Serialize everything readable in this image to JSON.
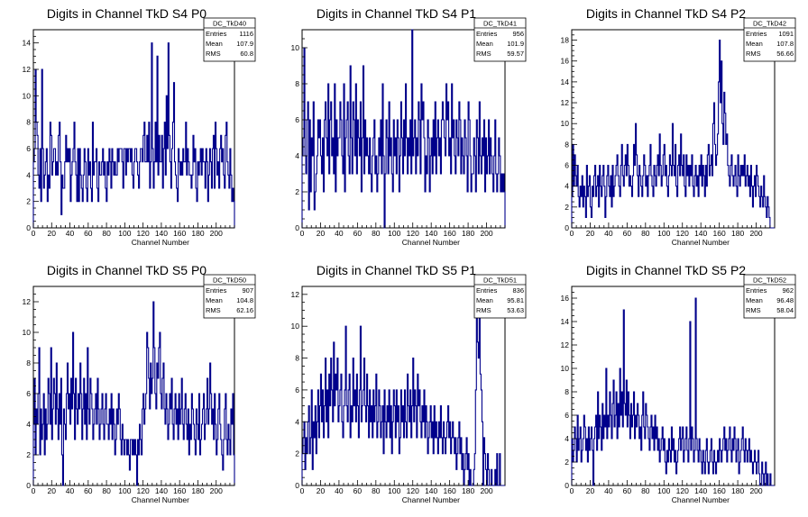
{
  "chart_data": [
    {
      "type": "bar",
      "title": "Digits in Channel TkD S4 P0",
      "xlabel": "Channel Number",
      "ylabel": "",
      "xlim": [
        0,
        220
      ],
      "ylim": [
        0,
        15
      ],
      "xticks": [
        0,
        20,
        40,
        60,
        80,
        100,
        120,
        140,
        160,
        180,
        200
      ],
      "yticks": [
        0,
        2,
        4,
        6,
        8,
        10,
        12,
        14
      ],
      "color": "#00008b",
      "stats": {
        "name": "DC_TkD40",
        "entries": "1116",
        "mean": "107.9",
        "rms": "60.8"
      },
      "values": [
        5,
        6,
        12,
        8,
        7,
        4,
        3,
        6,
        2,
        12,
        6,
        3,
        4,
        5,
        6,
        2,
        4,
        3,
        8,
        7,
        4,
        5,
        6,
        6,
        4,
        5,
        4,
        7,
        8,
        5,
        1,
        4,
        3,
        3,
        5,
        7,
        5,
        6,
        5,
        6,
        2,
        4,
        5,
        6,
        8,
        5,
        4,
        2,
        6,
        2,
        6,
        4,
        3,
        2,
        4,
        6,
        5,
        3,
        2,
        6,
        4,
        5,
        3,
        2,
        8,
        4,
        5,
        5,
        6,
        3,
        2,
        5,
        4,
        4,
        5,
        6,
        4,
        5,
        3,
        2,
        5,
        4,
        6,
        5,
        3,
        6,
        5,
        4,
        5,
        4,
        4,
        6,
        5,
        6,
        6,
        6,
        5,
        3,
        6,
        6,
        4,
        6,
        5,
        6,
        6,
        5,
        6,
        4,
        3,
        5,
        6,
        6,
        5,
        4,
        3,
        5,
        6,
        6,
        5,
        7,
        8,
        5,
        5,
        7,
        5,
        8,
        3,
        5,
        14,
        6,
        3,
        5,
        8,
        5,
        13,
        4,
        7,
        5,
        5,
        7,
        3,
        6,
        8,
        4,
        10,
        6,
        14,
        7,
        5,
        3,
        6,
        8,
        11,
        5,
        4,
        3,
        2,
        6,
        5,
        4,
        5,
        4,
        6,
        5,
        5,
        8,
        4,
        6,
        5,
        4,
        4,
        3,
        4,
        7,
        5,
        6,
        3,
        2,
        5,
        4,
        5,
        6,
        4,
        6,
        5,
        5,
        3,
        6,
        5,
        2,
        4,
        6,
        5,
        3,
        6,
        7,
        3,
        8,
        6,
        4,
        5,
        3,
        6,
        7,
        5,
        6,
        4,
        3,
        7,
        8,
        5,
        4,
        3,
        6,
        4,
        2,
        3,
        2
      ]
    },
    {
      "type": "bar",
      "title": "Digits in Channel TkD S4 P1",
      "xlabel": "Channel Number",
      "ylabel": "",
      "xlim": [
        0,
        220
      ],
      "ylim": [
        0,
        11
      ],
      "xticks": [
        0,
        20,
        40,
        60,
        80,
        100,
        120,
        140,
        160,
        180,
        200
      ],
      "yticks": [
        0,
        2,
        4,
        6,
        8,
        10
      ],
      "color": "#00008b",
      "stats": {
        "name": "DC_TkD41",
        "entries": "956",
        "mean": "101.9",
        "rms": "59.57"
      },
      "values": [
        4,
        5,
        10,
        4,
        3,
        6,
        7,
        1,
        6,
        2,
        5,
        4,
        7,
        1,
        2,
        3,
        4,
        6,
        5,
        6,
        4,
        3,
        5,
        2,
        6,
        7,
        5,
        4,
        8,
        3,
        6,
        7,
        4,
        5,
        3,
        8,
        2,
        6,
        4,
        5,
        5,
        7,
        6,
        4,
        3,
        8,
        2,
        5,
        6,
        7,
        4,
        3,
        9,
        5,
        3,
        7,
        6,
        4,
        8,
        3,
        6,
        5,
        4,
        7,
        2,
        5,
        9,
        3,
        6,
        4,
        5,
        4,
        3,
        5,
        3,
        2,
        4,
        5,
        6,
        3,
        4,
        2,
        3,
        5,
        4,
        6,
        3,
        8,
        4,
        0,
        3,
        6,
        5,
        3,
        7,
        4,
        5,
        3,
        2,
        6,
        4,
        5,
        3,
        6,
        5,
        2,
        4,
        7,
        5,
        3,
        6,
        4,
        8,
        5,
        3,
        5,
        4,
        6,
        3,
        11,
        4,
        5,
        6,
        3,
        5,
        4,
        7,
        6,
        3,
        8,
        6,
        7,
        5,
        2,
        4,
        3,
        6,
        5,
        2,
        4,
        5,
        3,
        6,
        4,
        7,
        3,
        5,
        6,
        4,
        5,
        3,
        6,
        7,
        6,
        5,
        4,
        8,
        6,
        7,
        4,
        5,
        3,
        8,
        5,
        6,
        4,
        3,
        6,
        5,
        4,
        7,
        6,
        3,
        5,
        4,
        3,
        6,
        5,
        4,
        2,
        7,
        6,
        4,
        2,
        3,
        3,
        5,
        4,
        2,
        6,
        5,
        3,
        7,
        4,
        3,
        5,
        4,
        6,
        2,
        5,
        3,
        4,
        6,
        3,
        5,
        4,
        3,
        2,
        4,
        6,
        3,
        2,
        3,
        5,
        4,
        2,
        3,
        2,
        3,
        2
      ]
    },
    {
      "type": "bar",
      "title": "Digits in Channel TkD S4 P2",
      "xlabel": "Channel Number",
      "ylabel": "",
      "xlim": [
        0,
        220
      ],
      "ylim": [
        0,
        19
      ],
      "xticks": [
        0,
        20,
        40,
        60,
        80,
        100,
        120,
        140,
        160,
        180,
        200
      ],
      "yticks": [
        0,
        2,
        4,
        6,
        8,
        10,
        12,
        14,
        16,
        18
      ],
      "color": "#00008b",
      "stats": {
        "name": "DC_TkD42",
        "entries": "1091",
        "mean": "107.8",
        "rms": "56.66"
      },
      "values": [
        3,
        8,
        4,
        7,
        5,
        4,
        6,
        3,
        2,
        4,
        3,
        5,
        2,
        4,
        3,
        1,
        6,
        3,
        4,
        5,
        2,
        1,
        4,
        3,
        5,
        6,
        3,
        4,
        5,
        2,
        6,
        4,
        3,
        5,
        6,
        4,
        1,
        3,
        5,
        6,
        4,
        3,
        5,
        2,
        6,
        3,
        4,
        5,
        6,
        7,
        5,
        4,
        3,
        6,
        8,
        5,
        4,
        6,
        7,
        5,
        8,
        6,
        4,
        5,
        4,
        3,
        5,
        8,
        6,
        10,
        7,
        5,
        3,
        6,
        5,
        4,
        3,
        5,
        7,
        6,
        4,
        5,
        3,
        5,
        6,
        8,
        5,
        4,
        3,
        6,
        5,
        4,
        6,
        7,
        5,
        9,
        6,
        4,
        5,
        7,
        8,
        5,
        6,
        4,
        3,
        5,
        7,
        6,
        5,
        10,
        6,
        5,
        8,
        4,
        3,
        6,
        7,
        5,
        9,
        6,
        5,
        7,
        4,
        3,
        7,
        5,
        6,
        4,
        6,
        5,
        7,
        4,
        3,
        5,
        6,
        4,
        5,
        3,
        6,
        5,
        7,
        4,
        6,
        5,
        3,
        6,
        4,
        7,
        8,
        5,
        6,
        7,
        5,
        10,
        12,
        8,
        6,
        7,
        9,
        14,
        18,
        12,
        16,
        10,
        8,
        13,
        11,
        8,
        9,
        6,
        5,
        4,
        6,
        7,
        5,
        4,
        5,
        6,
        4,
        3,
        7,
        5,
        4,
        6,
        5,
        6,
        5,
        7,
        4,
        5,
        6,
        4,
        5,
        3,
        6,
        4,
        2,
        4,
        5,
        3,
        6,
        5,
        4,
        3,
        2,
        4,
        3,
        2,
        5,
        3,
        2,
        1,
        3,
        2,
        1,
        0,
        0,
        0,
        0,
        0
      ]
    },
    {
      "type": "bar",
      "title": "Digits in Channel TkD S5 P0",
      "xlabel": "Channel Number",
      "ylabel": "",
      "xlim": [
        0,
        220
      ],
      "ylim": [
        0,
        13
      ],
      "xticks": [
        0,
        20,
        40,
        60,
        80,
        100,
        120,
        140,
        160,
        180,
        200
      ],
      "yticks": [
        0,
        2,
        4,
        6,
        8,
        10,
        12
      ],
      "color": "#00008b",
      "stats": {
        "name": "DC_TkD50",
        "entries": "907",
        "mean": "104.8",
        "rms": "62.16"
      },
      "values": [
        4,
        7,
        2,
        5,
        4,
        6,
        9,
        2,
        5,
        3,
        4,
        6,
        2,
        5,
        3,
        4,
        7,
        6,
        4,
        9,
        3,
        5,
        7,
        6,
        4,
        8,
        5,
        3,
        6,
        4,
        7,
        2,
        0,
        5,
        4,
        3,
        6,
        8,
        5,
        6,
        4,
        7,
        5,
        10,
        6,
        3,
        7,
        5,
        4,
        6,
        5,
        8,
        6,
        3,
        5,
        7,
        4,
        6,
        3,
        9,
        5,
        4,
        7,
        6,
        5,
        3,
        4,
        5,
        6,
        4,
        7,
        5,
        3,
        4,
        5,
        6,
        4,
        3,
        5,
        6,
        4,
        4,
        3,
        5,
        4,
        6,
        3,
        5,
        4,
        2,
        3,
        5,
        4,
        6,
        5,
        3,
        2,
        4,
        3,
        2,
        3,
        3,
        2,
        3,
        2,
        1,
        3,
        3,
        2,
        3,
        2,
        3,
        2,
        0,
        3,
        2,
        4,
        3,
        2,
        5,
        6,
        4,
        5,
        6,
        10,
        9,
        7,
        5,
        8,
        6,
        7,
        12,
        9,
        6,
        5,
        8,
        7,
        9,
        10,
        6,
        5,
        7,
        8,
        5,
        4,
        6,
        5,
        3,
        4,
        6,
        5,
        7,
        4,
        3,
        5,
        6,
        4,
        5,
        3,
        6,
        4,
        5,
        7,
        4,
        3,
        5,
        6,
        4,
        3,
        5,
        2,
        4,
        3,
        6,
        5,
        4,
        3,
        2,
        5,
        4,
        3,
        6,
        2,
        3,
        4,
        5,
        6,
        3,
        4,
        5,
        7,
        4,
        5,
        8,
        6,
        4,
        5,
        3,
        6,
        4,
        2,
        3,
        5,
        6,
        4,
        3,
        2,
        1,
        3,
        5,
        6,
        3,
        2,
        4,
        3,
        2,
        5,
        4,
        6,
        2
      ]
    },
    {
      "type": "bar",
      "title": "Digits in Channel TkD S5 P1",
      "xlabel": "Channel Number",
      "ylabel": "",
      "xlim": [
        0,
        220
      ],
      "ylim": [
        0,
        12.5
      ],
      "xticks": [
        0,
        20,
        40,
        60,
        80,
        100,
        120,
        140,
        160,
        180,
        200
      ],
      "yticks": [
        0,
        2,
        4,
        6,
        8,
        10,
        12
      ],
      "color": "#00008b",
      "stats": {
        "name": "DC_TkD51",
        "entries": "836",
        "mean": "95.81",
        "rms": "53.63"
      },
      "values": [
        2,
        3,
        4,
        1,
        3,
        2,
        4,
        5,
        2,
        3,
        6,
        1,
        4,
        3,
        5,
        2,
        4,
        6,
        3,
        5,
        7,
        4,
        6,
        3,
        5,
        8,
        4,
        6,
        3,
        7,
        5,
        8,
        6,
        4,
        9,
        5,
        7,
        6,
        8,
        4,
        5,
        6,
        7,
        4,
        3,
        5,
        6,
        10,
        5,
        4,
        6,
        7,
        3,
        5,
        4,
        8,
        5,
        6,
        4,
        7,
        5,
        3,
        6,
        10,
        4,
        5,
        6,
        8,
        5,
        4,
        7,
        5,
        3,
        6,
        4,
        5,
        3,
        6,
        4,
        5,
        7,
        3,
        4,
        6,
        5,
        3,
        4,
        5,
        2,
        6,
        4,
        3,
        5,
        4,
        6,
        3,
        5,
        2,
        4,
        6,
        5,
        3,
        6,
        4,
        5,
        2,
        3,
        6,
        4,
        5,
        3,
        6,
        4,
        3,
        7,
        5,
        4,
        6,
        3,
        5,
        8,
        4,
        6,
        5,
        3,
        7,
        5,
        6,
        4,
        3,
        5,
        4,
        6,
        3,
        5,
        4,
        2,
        3,
        4,
        5,
        3,
        4,
        2,
        5,
        3,
        4,
        3,
        2,
        4,
        3,
        5,
        3,
        2,
        4,
        3,
        2,
        3,
        4,
        5,
        3,
        4,
        2,
        3,
        4,
        3,
        2,
        3,
        1,
        2,
        3,
        4,
        2,
        3,
        1,
        2,
        0,
        1,
        2,
        3,
        1,
        2,
        0,
        1,
        0,
        0,
        0,
        1,
        2,
        6,
        11,
        9,
        8,
        11,
        7,
        6,
        4,
        0,
        3,
        2,
        1,
        0,
        2,
        1,
        0,
        0,
        1,
        0,
        0,
        0,
        1,
        0,
        2,
        0,
        0,
        2,
        0,
        0,
        0,
        0,
        0
      ]
    },
    {
      "type": "bar",
      "title": "Digits in Channel TkD S5 P2",
      "xlabel": "Channel Number",
      "ylabel": "",
      "xlim": [
        0,
        220
      ],
      "ylim": [
        0,
        17
      ],
      "xticks": [
        0,
        20,
        40,
        60,
        80,
        100,
        120,
        140,
        160,
        180,
        200
      ],
      "yticks": [
        0,
        2,
        4,
        6,
        8,
        10,
        12,
        14,
        16
      ],
      "color": "#00008b",
      "stats": {
        "name": "DC_TkD52",
        "entries": "962",
        "mean": "96.48",
        "rms": "58.04"
      },
      "values": [
        4,
        2,
        3,
        5,
        4,
        2,
        6,
        3,
        4,
        5,
        2,
        3,
        4,
        6,
        5,
        3,
        4,
        2,
        5,
        3,
        4,
        5,
        3,
        0,
        4,
        5,
        6,
        3,
        8,
        4,
        6,
        5,
        3,
        7,
        4,
        6,
        5,
        10,
        4,
        6,
        5,
        8,
        6,
        4,
        7,
        9,
        5,
        6,
        8,
        4,
        7,
        5,
        10,
        6,
        8,
        5,
        15,
        7,
        6,
        9,
        5,
        8,
        6,
        4,
        7,
        5,
        6,
        8,
        4,
        6,
        5,
        7,
        6,
        4,
        5,
        3,
        6,
        8,
        5,
        4,
        7,
        6,
        5,
        4,
        3,
        5,
        6,
        4,
        5,
        3,
        6,
        4,
        5,
        3,
        4,
        2,
        3,
        4,
        5,
        3,
        4,
        2,
        1,
        3,
        2,
        4,
        3,
        2,
        5,
        3,
        4,
        2,
        3,
        1,
        2,
        3,
        4,
        5,
        3,
        4,
        5,
        2,
        3,
        4,
        5,
        3,
        2,
        4,
        14,
        3,
        5,
        4,
        2,
        3,
        16,
        4,
        3,
        2,
        4,
        3,
        2,
        1,
        3,
        2,
        1,
        3,
        4,
        2,
        1,
        2,
        3,
        4,
        2,
        1,
        3,
        2,
        1,
        2,
        3,
        2,
        4,
        3,
        2,
        3,
        4,
        5,
        3,
        4,
        2,
        3,
        4,
        5,
        3,
        2,
        4,
        3,
        5,
        4,
        2,
        3,
        4,
        1,
        2,
        3,
        4,
        5,
        3,
        2,
        4,
        3,
        2,
        3,
        4,
        2,
        3,
        2,
        1,
        2,
        3,
        2,
        1,
        2,
        3,
        1,
        0,
        0,
        2,
        1,
        0,
        1,
        2,
        0,
        1,
        0,
        0,
        1,
        0,
        0,
        0,
        0
      ]
    }
  ]
}
